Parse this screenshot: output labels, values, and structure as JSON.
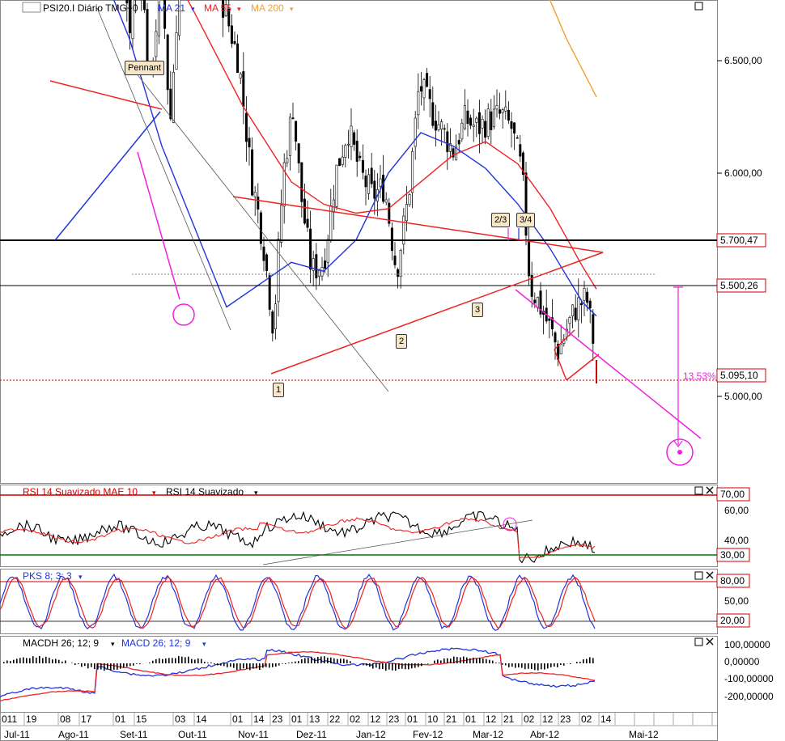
{
  "main": {
    "title": "PSI20.I Diário TMG+0",
    "ma21": "MA 21",
    "ma55": "MA 55",
    "ma200": "MA 200",
    "pennant": "Pennant",
    "price_ticks": [
      "6.500,00",
      "6.000,00",
      "5.000,00"
    ],
    "hline_labels": [
      "5.700,47",
      "5.500,26",
      "5.095,10"
    ],
    "pct_label": "13,53%",
    "wave_labels": [
      "1",
      "2",
      "3",
      "2/3",
      "3/4"
    ]
  },
  "rsi": {
    "title_a": "RSI 14 Suavizado MAE 10",
    "title_b": "RSI 14 Suavizado",
    "ticks": [
      "60,00",
      "40,00"
    ],
    "level_labels": [
      "70,00",
      "30,00"
    ]
  },
  "pks": {
    "title": "PKS 8; 3; 3",
    "ticks": [
      "50,00"
    ],
    "level_labels": [
      "80,00",
      "20,00"
    ]
  },
  "macd": {
    "title_a": "MACDH 26; 12; 9",
    "title_b": "MACD 26; 12; 9",
    "ticks": [
      "100,00000",
      "0,00000",
      "-100,00000",
      "-200,00000"
    ]
  },
  "xaxis": {
    "days": [
      "011",
      "19",
      "08",
      "17",
      "01",
      "15",
      "03",
      "14",
      "01",
      "14",
      "23",
      "01",
      "13",
      "22",
      "02",
      "12",
      "23",
      "01",
      "10",
      "21",
      "01",
      "12",
      "21",
      "02",
      "12",
      "23",
      "02",
      "14"
    ],
    "months": [
      "Jul-11",
      "Ago-11",
      "Set-11",
      "Out-11",
      "Nov-11",
      "Dez-11",
      "Jan-12",
      "Fev-12",
      "Mar-12",
      "Abr-12",
      "Mai-12"
    ]
  },
  "colors": {
    "ma21": "#2233dd",
    "ma55": "#ee2222",
    "ma200": "#f0a030",
    "rsi": "#000000",
    "rsi_signal": "#ee2222",
    "pks_k": "#2233dd",
    "pks_d": "#ee2222",
    "magenta": "#ee22dd",
    "level_green": "#007700",
    "level_red": "#cc0000"
  },
  "chart_data": [
    {
      "type": "line",
      "panel": "price",
      "ylim": [
        4600,
        6850
      ],
      "series": [
        {
          "name": "MA 21",
          "x": [
            0,
            40,
            80,
            120,
            160,
            200,
            240,
            280,
            320,
            360,
            400,
            440,
            480,
            520,
            560,
            600,
            640,
            680,
            720,
            737
          ],
          "values": [
            6900,
            6550,
            6150,
            5980,
            5800,
            5560,
            5380,
            5200,
            5250,
            5300,
            5280,
            5350,
            5500,
            5590,
            5560,
            5510,
            5430,
            5330,
            5210,
            5180
          ]
        },
        {
          "name": "MA 55",
          "x": [
            0,
            60,
            120,
            180,
            240,
            300,
            360,
            400,
            440,
            480,
            520,
            560,
            600,
            640,
            680,
            720,
            737
          ],
          "values": [
            6950,
            6780,
            6420,
            6060,
            5860,
            5650,
            5480,
            5430,
            5410,
            5420,
            5480,
            5540,
            5570,
            5520,
            5420,
            5290,
            5240
          ]
        },
        {
          "name": "MA 200",
          "x": [
            360,
            420,
            480,
            540,
            600,
            660,
            700,
            737
          ],
          "values": [
            6900,
            6700,
            6510,
            6320,
            6120,
            5970,
            5800,
            5670
          ]
        }
      ]
    },
    {
      "type": "line",
      "panel": "rsi",
      "ylim": [
        25,
        75
      ],
      "levels": [
        70,
        30
      ]
    },
    {
      "type": "line",
      "panel": "pks",
      "ylim": [
        0,
        100
      ],
      "levels": [
        80,
        20
      ]
    },
    {
      "type": "bar",
      "panel": "macd",
      "ylim": [
        -250,
        120
      ]
    }
  ]
}
